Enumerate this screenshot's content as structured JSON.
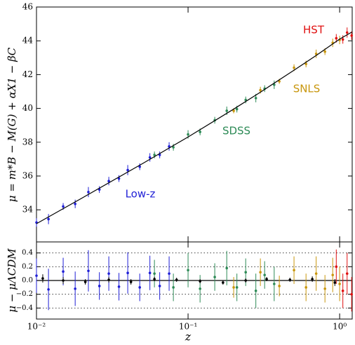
{
  "chart_data": [
    {
      "type": "scatter",
      "y_label": "μ = m*B − M(G) + αX1 − βC",
      "xlim": [
        0.01,
        1.21
      ],
      "xscale": "log",
      "ylim": [
        32.1,
        46
      ],
      "yticks": [
        34,
        36,
        38,
        40,
        42,
        44,
        46
      ],
      "series": [
        {
          "name": "Low-z",
          "color": "#1f1fd6",
          "x": [
            0.01,
            0.012,
            0.015,
            0.018,
            0.022,
            0.026,
            0.03,
            0.035,
            0.04,
            0.048,
            0.056,
            0.065,
            0.075
          ],
          "values": [
            33.25,
            33.45,
            34.2,
            34.35,
            35.05,
            35.2,
            35.7,
            35.85,
            36.35,
            36.55,
            37.1,
            37.25,
            37.75
          ],
          "errors": [
            0.25,
            0.3,
            0.2,
            0.25,
            0.3,
            0.2,
            0.25,
            0.2,
            0.3,
            0.2,
            0.25,
            0.2,
            0.25
          ]
        },
        {
          "name": "SDSS",
          "color": "#2e8b57",
          "x": [
            0.06,
            0.08,
            0.1,
            0.12,
            0.15,
            0.18,
            0.21,
            0.24,
            0.28,
            0.32,
            0.37
          ],
          "values": [
            37.25,
            37.7,
            38.46,
            38.61,
            39.3,
            39.86,
            39.96,
            40.5,
            40.61,
            41.17,
            41.4
          ],
          "errors": [
            0.2,
            0.2,
            0.25,
            0.2,
            0.2,
            0.25,
            0.2,
            0.2,
            0.25,
            0.2,
            0.25
          ]
        },
        {
          "name": "SNLS",
          "color": "#c8960c",
          "x": [
            0.2,
            0.3,
            0.4,
            0.5,
            0.6,
            0.7,
            0.8,
            0.9,
            1.0
          ],
          "values": [
            39.86,
            41.08,
            41.6,
            42.41,
            42.63,
            43.23,
            43.36,
            43.88,
            44.05
          ],
          "errors": [
            0.15,
            0.2,
            0.15,
            0.2,
            0.2,
            0.25,
            0.2,
            0.25,
            0.25
          ]
        },
        {
          "name": "HST",
          "color": "#e01010",
          "x": [
            0.95,
            1.05,
            1.12,
            1.2
          ],
          "values": [
            44.15,
            44.08,
            44.49,
            44.31
          ],
          "errors": [
            0.25,
            0.25,
            0.3,
            0.25
          ]
        },
        {
          "type": "line",
          "color": "#000000",
          "x": [
            0.01,
            0.02,
            0.05,
            0.1,
            0.2,
            0.3,
            0.5,
            0.7,
            1.0,
            1.2
          ],
          "values": [
            33.18,
            34.7,
            36.73,
            38.31,
            39.96,
            40.96,
            42.26,
            43.13,
            44.1,
            44.51
          ]
        }
      ]
    },
    {
      "type": "scatter",
      "x_label": "z",
      "y_label": "μ − μΛCDM",
      "xlim": [
        0.01,
        1.21
      ],
      "xscale": "log",
      "xticks": [
        {
          "value": 0.01,
          "label": "10⁻²"
        },
        {
          "value": 0.1,
          "label": "10⁻¹"
        },
        {
          "value": 1,
          "label": "10⁰"
        }
      ],
      "ylim": [
        -0.56,
        0.56
      ],
      "yticks": [
        {
          "value": -0.4,
          "label": "−0.4"
        },
        {
          "value": -0.2,
          "label": "−0.2"
        },
        {
          "value": 0,
          "label": "0.0"
        },
        0.2,
        0.4
      ],
      "grid": true,
      "zero_line": 0,
      "series": [
        {
          "color": "#1f1fd6",
          "x": [
            0.01,
            0.012,
            0.015,
            0.018,
            0.022,
            0.026,
            0.03,
            0.035,
            0.04,
            0.048,
            0.056,
            0.065,
            0.075
          ],
          "values": [
            0.07,
            -0.13,
            0.13,
            -0.12,
            0.14,
            -0.08,
            0.1,
            -0.09,
            0.11,
            -0.1,
            0.11,
            -0.08,
            0.1
          ],
          "errors": [
            0.25,
            0.3,
            0.2,
            0.25,
            0.3,
            0.2,
            0.25,
            0.2,
            0.3,
            0.2,
            0.25,
            0.2,
            0.25
          ]
        },
        {
          "color": "#2e8b57",
          "x": [
            0.06,
            0.08,
            0.1,
            0.12,
            0.15,
            0.18,
            0.21,
            0.24,
            0.28,
            0.32,
            0.37
          ],
          "values": [
            0.1,
            -0.1,
            0.15,
            -0.12,
            0.05,
            0.18,
            -0.1,
            0.12,
            -0.15,
            0.08,
            -0.05
          ],
          "errors": [
            0.2,
            0.2,
            0.25,
            0.2,
            0.2,
            0.25,
            0.2,
            0.2,
            0.25,
            0.2,
            0.25
          ]
        },
        {
          "color": "#c8960c",
          "x": [
            0.2,
            0.3,
            0.4,
            0.5,
            0.6,
            0.7,
            0.8,
            0.9,
            1.0
          ],
          "values": [
            -0.1,
            0.12,
            -0.08,
            0.15,
            -0.1,
            0.1,
            -0.12,
            0.08,
            -0.05
          ],
          "errors": [
            0.15,
            0.2,
            0.15,
            0.2,
            0.2,
            0.25,
            0.2,
            0.25,
            0.25
          ]
        },
        {
          "color": "#e01010",
          "x": [
            0.95,
            1.05,
            1.12,
            1.2
          ],
          "values": [
            0.2,
            -0.15,
            0.1,
            -0.2
          ],
          "errors": [
            0.25,
            0.25,
            0.3,
            0.25
          ]
        },
        {
          "color": "#000000",
          "x": [
            0.011,
            0.015,
            0.021,
            0.03,
            0.042,
            0.06,
            0.084,
            0.12,
            0.17,
            0.24,
            0.33,
            0.47,
            0.66,
            0.93
          ],
          "values": [
            0.03,
            0.0,
            -0.02,
            0.01,
            -0.02,
            0.02,
            0.01,
            -0.01,
            -0.03,
            0.0,
            0.02,
            0.01,
            0.02,
            -0.03
          ],
          "errors": [
            0.06,
            0.05,
            0.04,
            0.04,
            0.04,
            0.03,
            0.03,
            0.03,
            0.03,
            0.03,
            0.03,
            0.03,
            0.04,
            0.05
          ]
        }
      ]
    }
  ]
}
